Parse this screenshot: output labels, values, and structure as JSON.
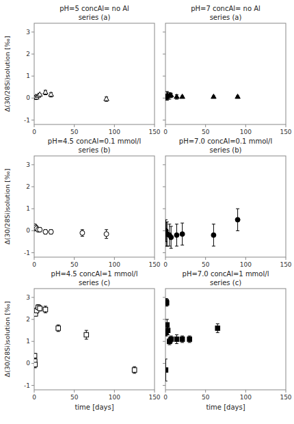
{
  "chart_data": [
    {
      "type": "scatter",
      "title": "pH=5 concAl= no Al",
      "subtitle": "series (a)",
      "ylabel": "Δ(30/28Si)solution [‰]",
      "x": [
        0.5,
        1,
        2,
        3,
        5,
        7,
        14,
        21,
        90
      ],
      "series": [
        {
          "values": [
            0.0,
            0.0,
            0.05,
            0.02,
            0.1,
            0.15,
            0.25,
            0.15,
            -0.05
          ],
          "errors": [
            0.05,
            0.05,
            0.05,
            0.05,
            0.05,
            0.05,
            0.1,
            0.1,
            0.1
          ],
          "color": "black",
          "marker": "triangle-open"
        }
      ],
      "xlim": [
        0,
        150
      ],
      "ylim": [
        -1.2,
        3.4
      ],
      "xticks": [
        0,
        50,
        100,
        150
      ],
      "yticks": [
        -1,
        0,
        1,
        2,
        3
      ]
    },
    {
      "type": "scatter",
      "title": "pH=7 concAl= no Al",
      "subtitle": "series (a)",
      "x": [
        0.5,
        1,
        2,
        3,
        5,
        7,
        14,
        21,
        60,
        90
      ],
      "series": [
        {
          "values": [
            0.05,
            0.05,
            0.1,
            0.1,
            0.1,
            0.12,
            0.05,
            0.05,
            0.05,
            0.05
          ],
          "errors": [
            0.1,
            0.1,
            0.2,
            0.15,
            0.15,
            0.1,
            0.1,
            0.05,
            0.05,
            0.05
          ],
          "color": "black",
          "marker": "triangle"
        }
      ],
      "xlim": [
        0,
        150
      ],
      "ylim": [
        -1.2,
        3.4
      ],
      "xticks": [
        0,
        50,
        100,
        150
      ],
      "yticks": [
        -1,
        0,
        1,
        2,
        3
      ],
      "tick_labels": "x"
    },
    {
      "type": "scatter",
      "title": "pH=4.5 concAl=0.1 mmol/l",
      "subtitle": "series (b)",
      "ylabel": "Δ(30/28Si)solution [‰]",
      "x": [
        0.3,
        0.5,
        0.7,
        1,
        1.5,
        2,
        3,
        5,
        7,
        14,
        21,
        60,
        90
      ],
      "series": [
        {
          "values": [
            0.1,
            0.15,
            0.2,
            0.1,
            0.1,
            0.15,
            0.1,
            0.05,
            0.05,
            -0.05,
            -0.05,
            -0.1,
            -0.15
          ],
          "errors": [
            0.1,
            0.1,
            0.1,
            0.1,
            0.1,
            0.1,
            0.1,
            0.1,
            0.1,
            0.1,
            0.1,
            0.15,
            0.2
          ],
          "color": "black",
          "marker": "circle-open"
        }
      ],
      "xlim": [
        0,
        150
      ],
      "ylim": [
        -1.2,
        3.4
      ],
      "xticks": [
        0,
        50,
        100,
        150
      ],
      "yticks": [
        -1,
        0,
        1,
        2,
        3
      ]
    },
    {
      "type": "scatter",
      "title": "pH=7.0 concAl=0.1 mmol/l",
      "subtitle": "series (b)",
      "x": [
        0.5,
        1,
        2,
        5,
        7,
        14,
        21,
        60,
        90
      ],
      "series": [
        {
          "values": [
            0.0,
            -0.15,
            -0.15,
            -0.2,
            -0.3,
            -0.2,
            -0.15,
            -0.2,
            0.5
          ],
          "errors": [
            0.5,
            0.55,
            0.55,
            0.5,
            0.5,
            0.5,
            0.5,
            0.5,
            0.5
          ],
          "color": "black",
          "marker": "circle"
        }
      ],
      "xlim": [
        0,
        150
      ],
      "ylim": [
        -1.2,
        3.4
      ],
      "xticks": [
        0,
        50,
        100,
        150
      ],
      "yticks": [
        -1,
        0,
        1,
        2,
        3
      ],
      "tick_labels": "x"
    },
    {
      "type": "scatter",
      "title": "pH=4.5 concAl=1 mmol/l",
      "subtitle": "series (c)",
      "ylabel": "Δ(30/28Si)solution [‰]",
      "xlabel": "time [days]",
      "x": [
        0.3,
        0.5,
        0.7,
        1.0,
        1.5,
        3,
        5,
        7,
        14,
        30,
        65,
        125
      ],
      "series": [
        {
          "values": [
            0.0,
            0.35,
            0.1,
            -0.05,
            2.25,
            2.4,
            2.55,
            2.5,
            2.45,
            1.6,
            1.3,
            -0.3
          ],
          "errors": [
            0.1,
            0.1,
            0.1,
            0.15,
            0.1,
            0.12,
            0.12,
            0.12,
            0.15,
            0.15,
            0.2,
            0.15
          ],
          "color": "black",
          "marker": "square-open"
        }
      ],
      "xlim": [
        0,
        150
      ],
      "ylim": [
        -1.2,
        3.4
      ],
      "xticks": [
        0,
        50,
        100,
        150
      ],
      "yticks": [
        -1,
        0,
        1,
        2,
        3
      ]
    },
    {
      "type": "scatter",
      "title": "pH=7.0 concAl=1 mmol/l",
      "subtitle": "series (c)",
      "xlabel": "time [days]",
      "x": [
        0.3,
        0.5,
        0.7,
        1.0,
        1.5,
        2.0,
        3.0,
        5.0,
        7.0,
        14,
        21,
        30,
        65
      ],
      "series": [
        {
          "values": [
            -0.3,
            1.4,
            1.4,
            2.8,
            2.75,
            1.75,
            1.5,
            1.0,
            1.1,
            1.1,
            1.1,
            1.1,
            1.6
          ],
          "errors": [
            0.5,
            0.15,
            0.15,
            0.15,
            0.15,
            0.25,
            0.2,
            0.15,
            0.15,
            0.2,
            0.15,
            0.15,
            0.2
          ],
          "color": "black",
          "marker": "square"
        }
      ],
      "xlim": [
        0,
        150
      ],
      "ylim": [
        -1.2,
        3.4
      ],
      "xticks": [
        0,
        50,
        100,
        150
      ],
      "yticks": [
        -1,
        0,
        1,
        2,
        3
      ],
      "tick_labels": "x"
    }
  ]
}
